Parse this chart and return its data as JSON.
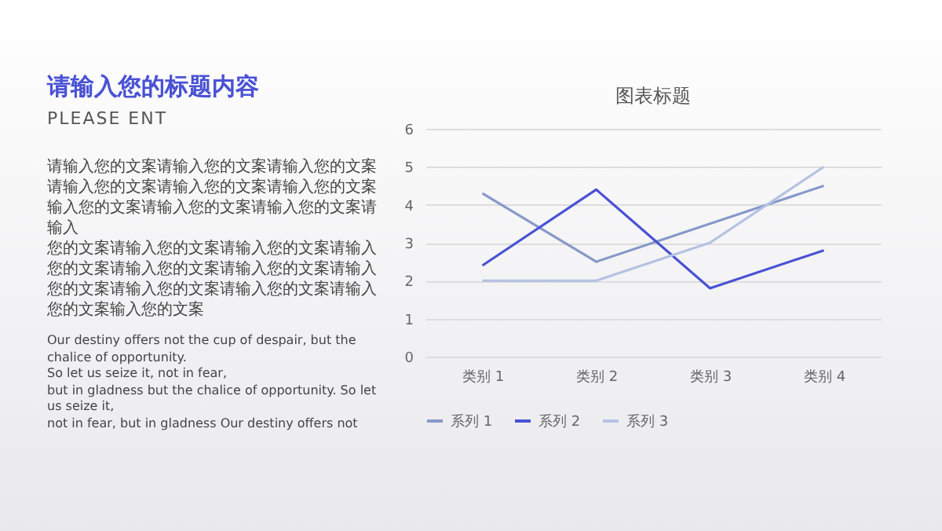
{
  "chart_data": {
    "type": "line",
    "title": "图表标题",
    "categories": [
      "类别 1",
      "类别 2",
      "类别 3",
      "类别 4"
    ],
    "series": [
      {
        "name": "系列 1",
        "color": "#8899c9",
        "values": [
          4.3,
          2.5,
          3.5,
          4.5
        ]
      },
      {
        "name": "系列 2",
        "color": "#4a52d4",
        "values": [
          2.4,
          4.4,
          1.8,
          2.8
        ]
      },
      {
        "name": "系列 3",
        "color": "#b6c2e2",
        "values": [
          2,
          2,
          3,
          5
        ]
      }
    ],
    "ylim": [
      0,
      6
    ],
    "yticks": [
      0,
      1,
      2,
      3,
      4,
      5,
      6
    ],
    "grid": "y",
    "legend": "bottom",
    "marker": "none",
    "line_style": "solid",
    "annotations": [
      "请输入您的标题内容",
      "PLEASE ENT",
      "请输入您的文案请输入您的文案请输入您的文案请输入您的文案请输入您的文案请输入您的文案输入您的文案请输入您的文案请输入您的文案请输入",
      "您的文案请输入您的文案请输入您的文案请输入您的文案请输入您的文案请输入您的文案请输入您的文案请输入您的文案请输入您的文案请输入您的文案输入您的文案",
      "Our destiny offers not the cup of despair, but the chalice of opportunity.",
      "So let us seize it, not in fear,",
      "but in gladness but the chalice of opportunity. So let us seize it,",
      " not in fear, but in gladness Our destiny offers not"
    ]
  }
}
